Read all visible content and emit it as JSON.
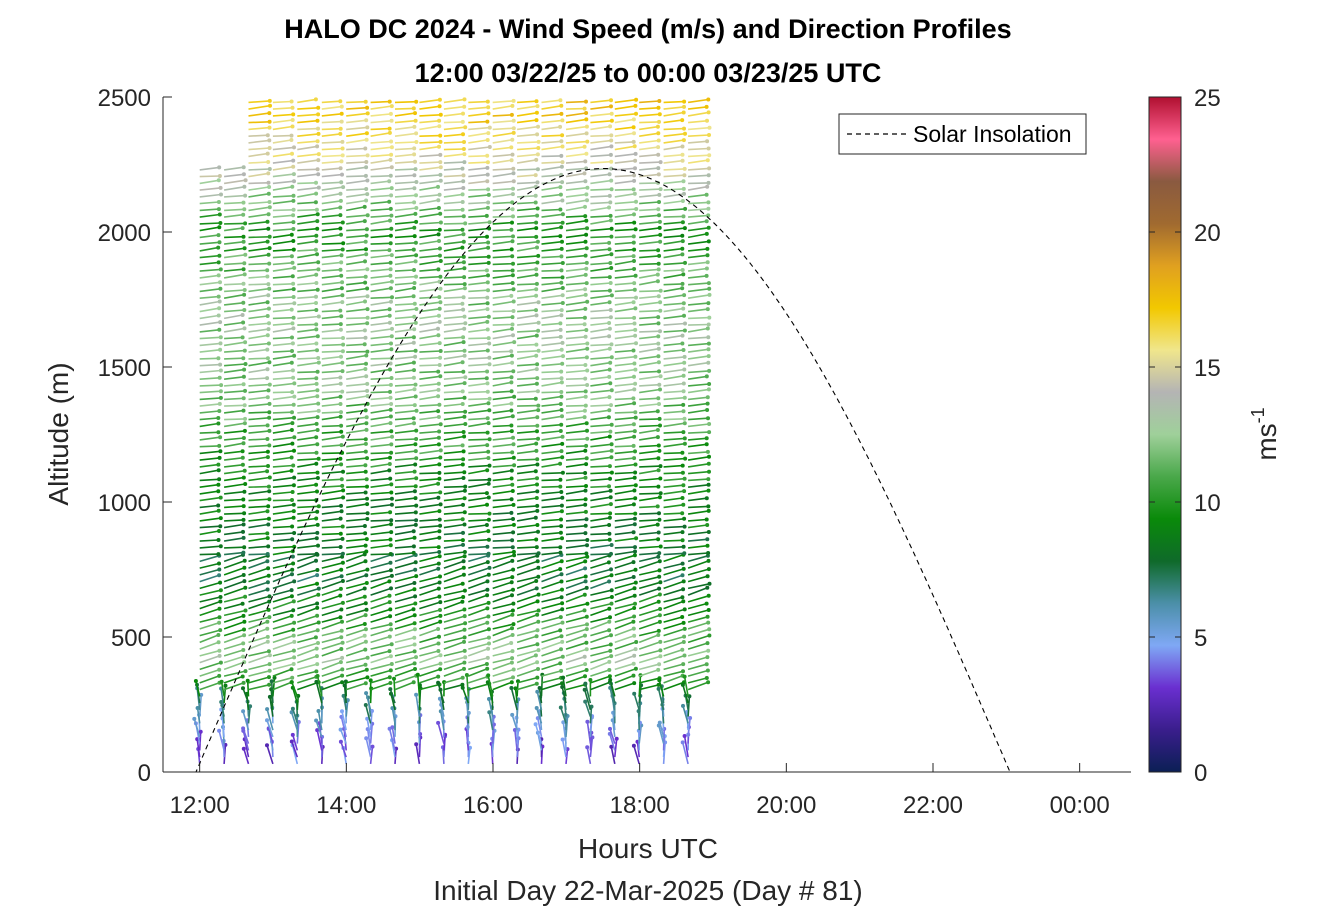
{
  "chart_data": {
    "type": "wind-barb profile",
    "title": "HALO DC 2024 - Wind Speed (m/s) and Direction Profiles",
    "subtitle": "12:00 03/22/25 to 00:00 03/23/25  UTC",
    "xlabel": "Hours UTC",
    "xlabel2": "Initial Day 22-Mar-2025 (Day # 81)",
    "ylabel": "Altitude (m)",
    "xlim": [
      11.5,
      24.7
    ],
    "ylim": [
      0,
      2500
    ],
    "xticks": [
      12,
      14,
      16,
      18,
      20,
      22,
      24
    ],
    "xtick_labels": [
      "12:00",
      "14:00",
      "16:00",
      "18:00",
      "20:00",
      "22:00",
      "00:00"
    ],
    "yticks": [
      0,
      500,
      1000,
      1500,
      2000,
      2500
    ],
    "ytick_labels": [
      "0",
      "500",
      "1000",
      "1500",
      "2000",
      "2500"
    ],
    "legend": {
      "label": "Solar Insolation",
      "position": "top-right",
      "style": "dashed"
    },
    "colorbar": {
      "label": "ms",
      "label_sup": "-1",
      "range": [
        0,
        25
      ],
      "ticks": [
        0,
        5,
        10,
        15,
        20,
        25
      ],
      "tick_labels": [
        "0",
        "5",
        "10",
        "15",
        "20",
        "25"
      ],
      "colors": [
        "#0b1f55",
        "#3a1e8c",
        "#6a2fd0",
        "#7fa8f5",
        "#4b8fa8",
        "#0f6a2a",
        "#0a8a0a",
        "#4aa84a",
        "#9fd09a",
        "#b4b4b4",
        "#f0e68c",
        "#f2c800",
        "#e0a020",
        "#a06a30",
        "#8a5a40",
        "#ff6090",
        "#b01030"
      ]
    },
    "solar_insolation": {
      "sunrise_hour": 11.95,
      "sunset_hour": 23.05,
      "peak_hour": 17.5,
      "peak_altitude_equiv": 2235
    },
    "wind_profiles": {
      "start_hour": 12.0,
      "end_hour": 18.8,
      "interval_hours": 0.333,
      "min_altitude": 30,
      "max_altitude": 2500,
      "level_spacing": 25,
      "speed_by_altitude": [
        {
          "altitude": 50,
          "speed": 3.5
        },
        {
          "altitude": 200,
          "speed": 6.5
        },
        {
          "altitude": 400,
          "speed": 12.5
        },
        {
          "altitude": 700,
          "speed": 8
        },
        {
          "altitude": 1100,
          "speed": 9.5
        },
        {
          "altitude": 1400,
          "speed": 12
        },
        {
          "altitude": 1700,
          "speed": 12.5
        },
        {
          "altitude": 2000,
          "speed": 10
        },
        {
          "altitude": 2200,
          "speed": 14
        },
        {
          "altitude": 2450,
          "speed": 17
        }
      ]
    }
  }
}
